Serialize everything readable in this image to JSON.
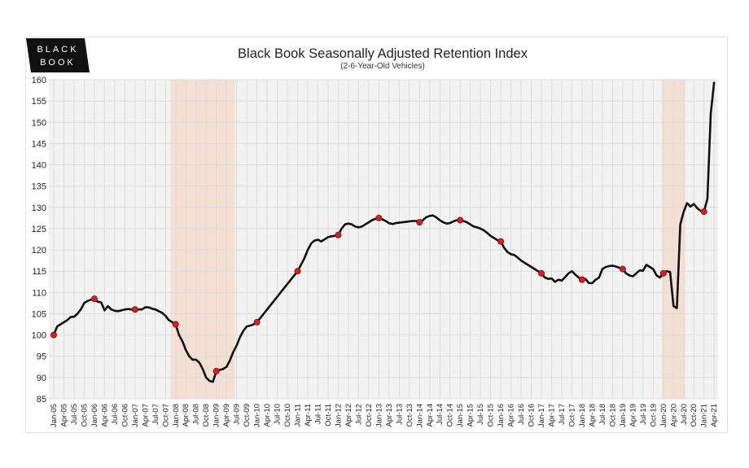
{
  "logo": {
    "line1": "BLACK",
    "line2": "BOOK"
  },
  "chart_data": {
    "type": "line",
    "title": "Black Book Seasonally Adjusted Retention Index",
    "subtitle": "(2-6-Year-Old Vehicles)",
    "xlabel": "",
    "ylabel": "",
    "ylim": [
      85,
      160
    ],
    "yticks": [
      85,
      90,
      95,
      100,
      105,
      110,
      115,
      120,
      125,
      130,
      135,
      140,
      145,
      150,
      155,
      160
    ],
    "grid": true,
    "legend": "none",
    "line_color": "#111111",
    "marker_color": "#d42020",
    "shade_color": "#f5dfd2",
    "start_month": "Jan-05",
    "xtick_labels": [
      "Jan-05",
      "Apr-05",
      "Jul-05",
      "Oct-05",
      "Jan-06",
      "Apr-06",
      "Jul-06",
      "Oct-06",
      "Jan-07",
      "Apr-07",
      "Jul-07",
      "Oct-07",
      "Jan-08",
      "Apr-08",
      "Jul-08",
      "Oct-08",
      "Jan-09",
      "Apr-09",
      "Jul-09",
      "Oct-09",
      "Jan-10",
      "Apr-10",
      "Jul-10",
      "Oct-10",
      "Jan-11",
      "Apr-11",
      "Jul-11",
      "Oct-11",
      "Jan-12",
      "Apr-12",
      "Jul-12",
      "Oct-12",
      "Jan-13",
      "Apr-13",
      "Jul-13",
      "Oct-13",
      "Jan-14",
      "Apr-14",
      "Jul-14",
      "Oct-14",
      "Jan-15",
      "Apr-15",
      "Jul-15",
      "Oct-15",
      "Jan-16",
      "Apr-16",
      "Jul-16",
      "Oct-16",
      "Jan-17",
      "Apr-17",
      "Jul-17",
      "Oct-17",
      "Jan-18",
      "Apr-18",
      "Jul-18",
      "Oct-18",
      "Jan-19",
      "Apr-19",
      "Jul-19",
      "Oct-19",
      "Jan-20",
      "Apr-20",
      "Jul-20",
      "Oct-20",
      "Jan-21",
      "Apr-21"
    ],
    "shaded_periods": [
      [
        "Dec-07",
        "Jun-09"
      ],
      [
        "Jan-20",
        "Jul-20"
      ]
    ],
    "marker_months": "January of each year",
    "values": [
      100,
      102,
      102.5,
      103,
      103.5,
      104.2,
      104.3,
      105,
      106,
      107.5,
      108,
      108.3,
      108.5,
      107.8,
      107.7,
      105.8,
      106.8,
      106,
      105.7,
      105.6,
      105.8,
      106,
      106.1,
      106,
      106,
      106,
      106,
      106.5,
      106.5,
      106.2,
      106,
      105.6,
      105.2,
      104.5,
      103.5,
      103,
      102.5,
      100,
      98.5,
      96.5,
      95,
      94.2,
      94.2,
      93.5,
      92,
      90,
      89.2,
      89,
      91.5,
      91.8,
      92,
      92.5,
      94,
      96,
      97.5,
      99.5,
      101,
      102,
      102.2,
      102.5,
      103,
      104,
      105,
      106,
      107,
      108,
      109,
      110,
      111,
      112,
      113,
      114,
      115,
      116.5,
      118,
      120,
      121.5,
      122.2,
      122.4,
      122,
      122.5,
      123,
      123.2,
      123.3,
      123.5,
      125,
      126,
      126.2,
      126,
      125.5,
      125.3,
      125.5,
      126,
      126.5,
      127,
      127.3,
      127.5,
      127.2,
      126.8,
      126.3,
      126.1,
      126.3,
      126.4,
      126.5,
      126.6,
      126.7,
      126.8,
      126.8,
      126.5,
      127,
      127.7,
      128,
      128.1,
      127.6,
      127,
      126.5,
      126.2,
      126.3,
      126.7,
      127,
      127,
      126.8,
      126.5,
      126,
      125.5,
      125.3,
      125,
      124.6,
      124,
      123.3,
      122.8,
      122.3,
      122,
      120.5,
      119.5,
      119,
      118.8,
      118.2,
      117.5,
      117,
      116.5,
      116,
      115.5,
      115,
      114.5,
      113.5,
      113.2,
      113.3,
      112.5,
      113,
      112.8,
      113.6,
      114.5,
      115,
      114.2,
      113.5,
      113,
      113.2,
      112.2,
      112.2,
      113,
      113.5,
      115.5,
      116,
      116.2,
      116.3,
      116.1,
      115.8,
      115.5,
      114.5,
      114,
      113.8,
      114.5,
      115.2,
      115.1,
      116.5,
      116,
      115.5,
      114,
      113.5,
      114.5,
      115,
      114.8,
      106.8,
      106.3,
      126,
      129,
      131,
      130.2,
      130.8,
      129.8,
      129.2,
      129,
      132,
      152,
      159.5
    ]
  }
}
